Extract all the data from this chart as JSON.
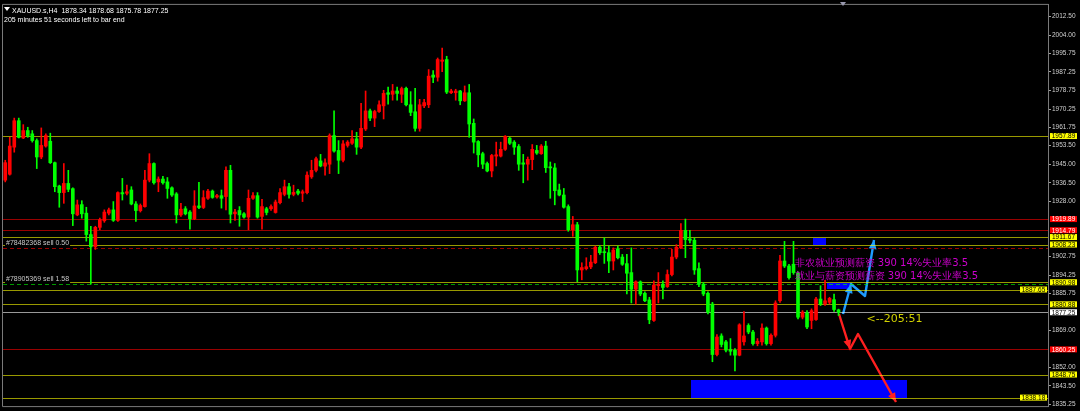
{
  "chart_data": {
    "type": "candlestick",
    "title": "XAUUSD.s,H4  1878.34 1878.68 1875.78 1877.25",
    "subtitle": "205 minutes 51 seconds left to bar end",
    "categories": [
      null,
      null,
      null,
      null,
      null,
      null,
      null,
      null,
      null,
      null,
      null,
      null,
      null,
      null,
      null,
      null,
      null,
      null,
      null,
      null,
      null,
      null,
      null,
      null,
      null,
      null,
      null,
      null,
      null,
      null,
      null,
      null,
      null,
      null,
      null,
      null,
      null,
      null,
      null,
      null,
      null,
      null,
      null,
      null,
      null,
      null,
      null,
      null,
      null,
      null,
      null,
      null,
      null,
      null,
      null,
      null,
      null,
      null,
      null,
      null,
      null,
      null,
      null,
      null,
      null,
      null,
      null,
      null,
      null,
      null,
      null,
      null,
      null,
      null,
      null,
      null,
      null,
      null,
      null,
      null,
      null,
      null,
      null,
      null,
      null,
      null,
      null,
      null,
      null,
      null,
      null,
      null,
      null,
      null,
      null,
      null,
      null,
      null,
      null,
      null,
      null,
      null,
      null,
      null,
      null,
      null,
      null,
      null,
      null,
      null,
      null,
      null,
      null,
      null,
      null,
      null,
      null,
      null,
      null,
      null,
      null,
      null,
      null,
      null,
      null,
      null,
      null,
      null,
      null,
      null,
      null,
      null,
      null,
      null,
      null,
      null,
      null,
      null,
      null,
      null,
      null,
      null,
      null,
      null,
      null,
      null,
      null,
      null,
      null,
      null,
      null,
      null,
      null,
      null,
      null,
      null,
      null,
      null,
      null,
      null,
      null,
      null,
      null,
      null,
      null,
      null,
      null,
      null,
      null,
      null,
      null,
      null,
      null,
      null,
      null,
      null,
      null,
      null,
      null,
      null,
      null,
      null,
      null,
      null,
      null,
      null,
      null,
      null,
      null,
      null,
      null,
      null,
      null,
      null,
      null,
      null,
      null,
      null,
      null,
      null,
      null,
      null,
      null,
      null,
      null,
      null,
      null,
      null,
      null,
      null,
      null,
      null,
      null,
      null,
      null,
      null,
      null,
      null,
      null,
      null,
      null,
      null,
      null,
      null,
      null,
      null,
      null,
      null,
      null,
      null,
      null,
      null
    ],
    "ohlc": [
      [
        1937.7,
        1946.8,
        1936.9,
        1945.7
      ],
      [
        1940.4,
        1957.3,
        1940.0,
        1953.3
      ],
      [
        1952.8,
        1966.1,
        1950.5,
        1964.9
      ],
      [
        1964.9,
        1966.1,
        1957.0,
        1957.3
      ],
      [
        1957.0,
        1963.1,
        1956.7,
        1960.4
      ],
      [
        1960.4,
        1961.9,
        1957.3,
        1958.1
      ],
      [
        1958.9,
        1960.4,
        1955.1,
        1955.8
      ],
      [
        1955.8,
        1956.6,
        1943.0,
        1948.3
      ],
      [
        1948.3,
        1961.6,
        1947.5,
        1953.6
      ],
      [
        1953.3,
        1958.9,
        1952.8,
        1958.1
      ],
      [
        1955.5,
        1959.2,
        1945.3,
        1945.7
      ],
      [
        1945.7,
        1946.0,
        1932.4,
        1934.7
      ],
      [
        1935.0,
        1935.4,
        1925.3,
        1932.0
      ],
      [
        1932.0,
        1945.3,
        1927.1,
        1936.2
      ],
      [
        1936.2,
        1942.2,
        1932.4,
        1933.5
      ],
      [
        1933.8,
        1934.2,
        1916.9,
        1922.3
      ],
      [
        1921.8,
        1928.6,
        1921.4,
        1926.4
      ],
      [
        1926.5,
        1928.3,
        1920.3,
        1922.3
      ],
      [
        1922.6,
        1925.3,
        1909.8,
        1912.8
      ],
      [
        1912.8,
        1916.6,
        1890.1,
        1907.2
      ],
      [
        1907.2,
        1916.6,
        1906.0,
        1916.1
      ],
      [
        1916.1,
        1920.3,
        1915.0,
        1919.6
      ],
      [
        1919.1,
        1924.1,
        1918.4,
        1923.1
      ],
      [
        1922.6,
        1924.9,
        1921.8,
        1924.1
      ],
      [
        1924.1,
        1927.9,
        1918.8,
        1919.3
      ],
      [
        1919.3,
        1932.4,
        1918.8,
        1932.0
      ],
      [
        1932.0,
        1938.5,
        1928.6,
        1931.4
      ],
      [
        1931.7,
        1935.4,
        1930.9,
        1932.4
      ],
      [
        1933.2,
        1934.7,
        1926.4,
        1926.8
      ],
      [
        1926.8,
        1927.9,
        1918.8,
        1923.8
      ],
      [
        1923.7,
        1926.8,
        1923.1,
        1926.1
      ],
      [
        1925.6,
        1942.2,
        1925.3,
        1937.7
      ],
      [
        1937.7,
        1949.8,
        1936.9,
        1945.3
      ],
      [
        1945.3,
        1945.6,
        1935.9,
        1936.5
      ],
      [
        1936.9,
        1939.2,
        1932.4,
        1938.2
      ],
      [
        1938.2,
        1939.5,
        1935.9,
        1936.5
      ],
      [
        1936.9,
        1938.9,
        1929.4,
        1933.9
      ],
      [
        1934.2,
        1934.7,
        1930.2,
        1930.9
      ],
      [
        1931.4,
        1932.0,
        1918.1,
        1921.8
      ],
      [
        1921.8,
        1927.1,
        1921.1,
        1924.4
      ],
      [
        1924.6,
        1925.6,
        1921.8,
        1922.3
      ],
      [
        1923.1,
        1923.8,
        1915.3,
        1920.0
      ],
      [
        1920.0,
        1932.9,
        1919.6,
        1925.9
      ],
      [
        1925.9,
        1936.7,
        1924.7,
        1925.2
      ],
      [
        1925.2,
        1932.9,
        1924.7,
        1929.7
      ],
      [
        1929.4,
        1933.5,
        1928.9,
        1932.7
      ],
      [
        1932.7,
        1933.2,
        1929.4,
        1929.8
      ],
      [
        1930.0,
        1931.2,
        1929.4,
        1930.6
      ],
      [
        1930.6,
        1933.2,
        1924.9,
        1929.4
      ],
      [
        1930.2,
        1943.8,
        1924.1,
        1942.2
      ],
      [
        1942.2,
        1944.5,
        1918.1,
        1922.1
      ],
      [
        1922.3,
        1924.4,
        1919.3,
        1923.1
      ],
      [
        1923.8,
        1925.6,
        1916.6,
        1921.8
      ],
      [
        1922.3,
        1922.9,
        1920.3,
        1920.8
      ],
      [
        1920.8,
        1933.2,
        1915.0,
        1929.4
      ],
      [
        1929.4,
        1932.0,
        1928.9,
        1930.6
      ],
      [
        1930.6,
        1932.0,
        1920.3,
        1920.8
      ],
      [
        1921.1,
        1928.9,
        1915.3,
        1925.6
      ],
      [
        1924.6,
        1925.3,
        1921.8,
        1922.9
      ],
      [
        1924.6,
        1926.4,
        1923.8,
        1925.6
      ],
      [
        1922.9,
        1928.6,
        1922.6,
        1927.7
      ],
      [
        1927.4,
        1933.9,
        1926.8,
        1932.0
      ],
      [
        1931.2,
        1937.7,
        1930.5,
        1934.7
      ],
      [
        1934.7,
        1936.2,
        1929.4,
        1931.2
      ],
      [
        1931.2,
        1935.4,
        1930.5,
        1932.1
      ],
      [
        1932.7,
        1933.5,
        1930.9,
        1931.7
      ],
      [
        1931.7,
        1933.2,
        1927.9,
        1932.4
      ],
      [
        1932.0,
        1941.5,
        1931.4,
        1940.0
      ],
      [
        1939.2,
        1946.8,
        1938.5,
        1942.2
      ],
      [
        1942.2,
        1948.3,
        1941.5,
        1947.5
      ],
      [
        1946.5,
        1949.5,
        1943.8,
        1944.2
      ],
      [
        1944.1,
        1947.5,
        1940.0,
        1945.6
      ],
      [
        1945.0,
        1958.9,
        1940.7,
        1958.1
      ],
      [
        1958.1,
        1969.4,
        1950.5,
        1951.0
      ],
      [
        1951.3,
        1955.8,
        1940.7,
        1946.8
      ],
      [
        1946.8,
        1955.8,
        1946.0,
        1954.3
      ],
      [
        1953.6,
        1955.8,
        1952.8,
        1955.1
      ],
      [
        1954.6,
        1960.4,
        1954.0,
        1956.6
      ],
      [
        1956.6,
        1959.6,
        1949.5,
        1952.8
      ],
      [
        1952.8,
        1972.8,
        1952.1,
        1961.4
      ],
      [
        1961.1,
        1978.5,
        1960.4,
        1969.4
      ],
      [
        1969.4,
        1970.2,
        1964.9,
        1966.1
      ],
      [
        1966.1,
        1969.7,
        1962.2,
        1969.1
      ],
      [
        1969.1,
        1974.0,
        1968.7,
        1972.2
      ],
      [
        1971.7,
        1978.8,
        1965.7,
        1977.4
      ],
      [
        1977.7,
        1980.3,
        1972.5,
        1977.0
      ],
      [
        1977.0,
        1981.5,
        1974.3,
        1978.5
      ],
      [
        1978.5,
        1980.3,
        1974.3,
        1977.4
      ],
      [
        1977.0,
        1980.3,
        1973.2,
        1979.6
      ],
      [
        1979.7,
        1980.3,
        1971.7,
        1972.2
      ],
      [
        1972.2,
        1978.2,
        1967.2,
        1968.7
      ],
      [
        1969.0,
        1979.7,
        1960.1,
        1961.4
      ],
      [
        1961.4,
        1974.7,
        1960.1,
        1972.2
      ],
      [
        1971.7,
        1974.7,
        1970.9,
        1973.2
      ],
      [
        1972.2,
        1988.3,
        1970.9,
        1985.3
      ],
      [
        1985.8,
        1987.9,
        1982.3,
        1984.8
      ],
      [
        1984.8,
        1993.6,
        1983.0,
        1992.9
      ],
      [
        1992.1,
        1998.1,
        1987.3,
        1992.7
      ],
      [
        1992.9,
        1994.4,
        1977.3,
        1978.0
      ],
      [
        1977.7,
        1979.3,
        1977.3,
        1978.5
      ],
      [
        1977.7,
        1979.3,
        1974.3,
        1978.5
      ],
      [
        1978.5,
        1978.8,
        1972.2,
        1974.0
      ],
      [
        1974.0,
        1980.8,
        1973.7,
        1977.7
      ],
      [
        1977.7,
        1981.5,
        1957.3,
        1963.4
      ],
      [
        1963.7,
        1965.7,
        1950.1,
        1955.1
      ],
      [
        1955.4,
        1955.8,
        1943.8,
        1949.3
      ],
      [
        1949.8,
        1950.5,
        1943.0,
        1945.0
      ],
      [
        1945.3,
        1946.0,
        1941.5,
        1941.9
      ],
      [
        1941.9,
        1949.5,
        1939.2,
        1949.0
      ],
      [
        1948.7,
        1955.1,
        1944.2,
        1949.3
      ],
      [
        1948.7,
        1955.1,
        1948.3,
        1951.8
      ],
      [
        1951.8,
        1958.1,
        1951.3,
        1957.8
      ],
      [
        1956.9,
        1957.3,
        1954.0,
        1954.6
      ],
      [
        1955.1,
        1955.8,
        1949.5,
        1952.8
      ],
      [
        1953.1,
        1954.0,
        1942.2,
        1945.0
      ],
      [
        1945.6,
        1949.5,
        1936.5,
        1945.0
      ],
      [
        1945.0,
        1948.3,
        1937.7,
        1947.2
      ],
      [
        1947.1,
        1954.0,
        1942.5,
        1951.8
      ],
      [
        1951.3,
        1953.6,
        1949.5,
        1950.1
      ],
      [
        1949.8,
        1954.0,
        1949.5,
        1953.3
      ],
      [
        1953.3,
        1955.5,
        1941.2,
        1943.4
      ],
      [
        1943.8,
        1946.0,
        1929.4,
        1943.3
      ],
      [
        1943.3,
        1945.3,
        1926.4,
        1932.9
      ],
      [
        1933.2,
        1935.9,
        1930.5,
        1930.9
      ],
      [
        1930.9,
        1933.9,
        1924.9,
        1925.3
      ],
      [
        1925.6,
        1926.4,
        1914.3,
        1915.0
      ],
      [
        1915.0,
        1921.1,
        1912.0,
        1917.3
      ],
      [
        1917.3,
        1918.4,
        1891.2,
        1896.6
      ],
      [
        1896.6,
        1899.9,
        1892.1,
        1897.7
      ],
      [
        1897.2,
        1902.2,
        1896.6,
        1898.1
      ],
      [
        1898.0,
        1903.3,
        1897.2,
        1900.2
      ],
      [
        1899.9,
        1907.5,
        1899.5,
        1907.0
      ],
      [
        1907.0,
        1907.8,
        1903.7,
        1904.5
      ],
      [
        1904.8,
        1911.3,
        1899.6,
        1904.5
      ],
      [
        1904.5,
        1907.5,
        1895.4,
        1900.7
      ],
      [
        1900.7,
        1906.7,
        1896.6,
        1905.7
      ],
      [
        1906.3,
        1907.5,
        1901.7,
        1902.2
      ],
      [
        1902.5,
        1903.7,
        1898.7,
        1899.2
      ],
      [
        1899.5,
        1903.7,
        1885.6,
        1895.1
      ],
      [
        1895.4,
        1906.7,
        1881.5,
        1887.8
      ],
      [
        1887.8,
        1891.6,
        1881.0,
        1891.2
      ],
      [
        1891.2,
        1891.6,
        1884.8,
        1885.6
      ],
      [
        1885.9,
        1886.6,
        1882.1,
        1882.5
      ],
      [
        1882.9,
        1884.1,
        1872.0,
        1873.8
      ],
      [
        1873.5,
        1891.6,
        1873.0,
        1889.7
      ],
      [
        1889.4,
        1895.4,
        1881.5,
        1890.1
      ],
      [
        1890.1,
        1891.6,
        1883.3,
        1888.6
      ],
      [
        1889.0,
        1896.6,
        1888.6,
        1894.5
      ],
      [
        1894.5,
        1906.0,
        1893.9,
        1902.5
      ],
      [
        1902.5,
        1908.2,
        1901.7,
        1907.0
      ],
      [
        1906.7,
        1917.8,
        1906.3,
        1914.7
      ],
      [
        1914.7,
        1919.9,
        1902.2,
        1910.5
      ],
      [
        1910.8,
        1914.7,
        1909.0,
        1910.2
      ],
      [
        1910.2,
        1911.3,
        1894.6,
        1896.6
      ],
      [
        1897.2,
        1899.9,
        1889.0,
        1890.1
      ],
      [
        1890.1,
        1890.9,
        1884.8,
        1885.6
      ],
      [
        1885.9,
        1886.6,
        1876.5,
        1877.3
      ],
      [
        1881.0,
        1881.8,
        1854.6,
        1857.9
      ],
      [
        1857.9,
        1867.0,
        1857.3,
        1865.9
      ],
      [
        1866.4,
        1867.4,
        1861.4,
        1862.5
      ],
      [
        1863.7,
        1864.4,
        1859.1,
        1859.9
      ],
      [
        1860.3,
        1865.2,
        1857.6,
        1859.4
      ],
      [
        1859.9,
        1860.6,
        1850.4,
        1857.6
      ],
      [
        1857.6,
        1872.0,
        1857.3,
        1871.5
      ],
      [
        1863.7,
        1877.6,
        1862.2,
        1866.4
      ],
      [
        1871.2,
        1872.0,
        1867.4,
        1868.2
      ],
      [
        1868.2,
        1869.0,
        1862.2,
        1862.9
      ],
      [
        1862.9,
        1865.2,
        1861.9,
        1864.0
      ],
      [
        1863.7,
        1872.0,
        1862.2,
        1870.0
      ],
      [
        1870.0,
        1870.5,
        1862.2,
        1862.9
      ],
      [
        1862.9,
        1867.4,
        1862.2,
        1866.7
      ],
      [
        1866.7,
        1882.5,
        1865.9,
        1881.5
      ],
      [
        1882.5,
        1903.3,
        1881.8,
        1900.7
      ],
      [
        1900.7,
        1909.7,
        1897.7,
        1898.4
      ],
      [
        1898.4,
        1899.2,
        1892.4,
        1893.1
      ],
      [
        1899.2,
        1909.7,
        1894.6,
        1895.4
      ],
      [
        1895.1,
        1895.7,
        1874.2,
        1875.0
      ],
      [
        1875.0,
        1878.0,
        1874.2,
        1877.3
      ],
      [
        1877.0,
        1878.0,
        1869.7,
        1870.5
      ],
      [
        1873.5,
        1878.8,
        1869.7,
        1878.0
      ],
      [
        1873.9,
        1884.1,
        1873.5,
        1883.3
      ],
      [
        1883.3,
        1889.4,
        1880.3,
        1881.0
      ],
      [
        1881.0,
        1891.9,
        1880.4,
        1882.5
      ],
      [
        1881.8,
        1884.1,
        1881.0,
        1883.6
      ],
      [
        1883.0,
        1885.6,
        1877.6,
        1878.5
      ],
      [
        1878.34,
        1878.68,
        1875.78,
        1877.25
      ],
      null,
      null,
      null,
      null,
      null,
      null,
      null,
      null,
      null,
      null,
      null,
      null,
      null,
      null,
      null,
      null,
      null,
      null,
      null,
      null,
      null,
      null,
      null,
      null,
      null,
      null,
      null,
      null,
      null,
      null,
      null,
      null,
      null,
      null,
      null,
      null,
      null,
      null,
      null,
      null,
      null,
      null,
      null,
      null,
      null,
      null
    ],
    "colors": [
      "#ff0000",
      "#ff0000",
      "#ff0000",
      "#00ff00",
      "#ff0000",
      "#00ff00",
      "#00ff00",
      "#00ff00",
      "#ff0000",
      "#ff0000",
      "#00ff00",
      "#00ff00",
      "#00ff00",
      "#ff0000",
      "#00ff00",
      "#00ff00",
      "#ff0000",
      "#00ff00",
      "#00ff00",
      "#00ff00",
      "#ff0000",
      "#ff0000",
      "#ff0000",
      "#ff0000",
      "#00ff00",
      "#ff0000",
      "#00ff00",
      "#ff0000",
      "#00ff00",
      "#00ff00",
      "#ff0000",
      "#ff0000",
      "#ff0000",
      "#00ff00",
      "#ff0000",
      "#00ff00",
      "#00ff00",
      "#00ff00",
      "#00ff00",
      "#ff0000",
      "#00ff00",
      "#00ff00",
      "#ff0000",
      "#00ff00",
      "#ff0000",
      "#ff0000",
      "#00ff00",
      "#ff0000",
      "#00ff00",
      "#ff0000",
      "#00ff00",
      "#ff0000",
      "#00ff00",
      "#00ff00",
      "#ff0000",
      "#ff0000",
      "#00ff00",
      "#ff0000",
      "#00ff00",
      "#ff0000",
      "#ff0000",
      "#ff0000",
      "#ff0000",
      "#00ff00",
      "#ff0000",
      "#00ff00",
      "#ff0000",
      "#ff0000",
      "#ff0000",
      "#ff0000",
      "#00ff00",
      "#ff0000",
      "#ff0000",
      "#00ff00",
      "#00ff00",
      "#ff0000",
      "#ff0000",
      "#ff0000",
      "#00ff00",
      "#ff0000",
      "#ff0000",
      "#00ff00",
      "#ff0000",
      "#ff0000",
      "#ff0000",
      "#00ff00",
      "#ff0000",
      "#00ff00",
      "#ff0000",
      "#00ff00",
      "#00ff00",
      "#00ff00",
      "#ff0000",
      "#ff0000",
      "#ff0000",
      "#00ff00",
      "#ff0000",
      "#ff0000",
      "#00ff00",
      "#ff0000",
      "#ff0000",
      "#00ff00",
      "#ff0000",
      "#00ff00",
      "#00ff00",
      "#00ff00",
      "#00ff00",
      "#00ff00",
      "#ff0000",
      "#ff0000",
      "#ff0000",
      "#ff0000",
      "#00ff00",
      "#00ff00",
      "#00ff00",
      "#00ff00",
      "#ff0000",
      "#ff0000",
      "#00ff00",
      "#ff0000",
      "#00ff00",
      "#00ff00",
      "#00ff00",
      "#00ff00",
      "#00ff00",
      "#00ff00",
      "#ff0000",
      "#00ff00",
      "#ff0000",
      "#ff0000",
      "#ff0000",
      "#ff0000",
      "#00ff00",
      "#00ff00",
      "#00ff00",
      "#ff0000",
      "#00ff00",
      "#00ff00",
      "#00ff00",
      "#00ff00",
      "#ff0000",
      "#00ff00",
      "#00ff00",
      "#00ff00",
      "#ff0000",
      "#ff0000",
      "#00ff00",
      "#ff0000",
      "#ff0000",
      "#ff0000",
      "#ff0000",
      "#00ff00",
      "#00ff00",
      "#00ff00",
      "#00ff00",
      "#00ff00",
      "#00ff00",
      "#00ff00",
      "#ff0000",
      "#00ff00",
      "#00ff00",
      "#00ff00",
      "#00ff00",
      "#ff0000",
      "#ff0000",
      "#00ff00",
      "#00ff00",
      "#ff0000",
      "#ff0000",
      "#00ff00",
      "#ff0000",
      "#ff0000",
      "#ff0000",
      "#00ff00",
      "#00ff00",
      "#00ff00",
      "#00ff00",
      "#ff0000",
      "#00ff00",
      "#ff0000",
      "#ff0000",
      "#00ff00",
      "#ff0000",
      "#ff0000",
      "#00ff00",
      "#00ff00",
      null,
      null,
      null,
      null,
      null,
      null,
      null,
      null,
      null,
      null,
      null,
      null,
      null,
      null,
      null,
      null,
      null,
      null,
      null,
      null,
      null,
      null,
      null,
      null,
      null,
      null,
      null,
      null,
      null,
      null,
      null,
      null,
      null,
      null,
      null,
      null,
      null,
      null,
      null,
      null,
      null,
      null,
      null,
      null,
      null,
      null
    ],
    "ylim": [
      1834.3,
      2017.9
    ],
    "yticks": [
      {
        "value": 2012.5,
        "label": "2012.50"
      },
      {
        "value": 2004,
        "label": "2004.00"
      },
      {
        "value": 1995.75,
        "label": "1995.75"
      },
      {
        "value": 1987.25,
        "label": "1987.25"
      },
      {
        "value": 1978.75,
        "label": "1978.75"
      },
      {
        "value": 1970.25,
        "label": "1970.25"
      },
      {
        "value": 1961.75,
        "label": "1961.75"
      },
      {
        "value": 1953.5,
        "label": "1953.50"
      },
      {
        "value": 1945,
        "label": "1945.00"
      },
      {
        "value": 1936.5,
        "label": "1936.50"
      },
      {
        "value": 1928,
        "label": "1928.00"
      },
      {
        "value": 1902.75,
        "label": "1902.75"
      },
      {
        "value": 1894.25,
        "label": "1894.25"
      },
      {
        "value": 1885.75,
        "label": "1885.75"
      },
      {
        "value": 1869,
        "label": "1869.00"
      },
      {
        "value": 1852,
        "label": "1852.00"
      },
      {
        "value": 1843.5,
        "label": "1843.50"
      },
      {
        "value": 1835.25,
        "label": "1835.25"
      }
    ],
    "ref_lines": [
      {
        "axis": "y",
        "value": 1957.89,
        "label": "1957.89",
        "color": "#ffff00"
      },
      {
        "axis": "y",
        "value": 1919.89,
        "label": "1919.89",
        "color": "#ff0000"
      },
      {
        "axis": "y",
        "value": 1914.79,
        "label": "1914.79",
        "color": "#ff0000"
      },
      {
        "axis": "y",
        "value": 1911.67,
        "label": "1911.67",
        "color": "#ffff00"
      },
      {
        "axis": "y",
        "value": 1908.23,
        "label": "1908.23",
        "color": "#ffff00"
      },
      {
        "axis": "y",
        "value": 1906.7,
        "label": "#78482368 sell 0.50",
        "color": "#ff0000",
        "line_style": "dashed"
      },
      {
        "axis": "y",
        "value": 1890.98,
        "label": "1890.98",
        "color": "#ffff00"
      },
      {
        "axis": "y",
        "value": 1890.3,
        "label": "#78905369 sell 1.58",
        "color": "#00ff00",
        "line_style": "dashed"
      },
      {
        "axis": "y",
        "value": 1887.65,
        "label": "1887.65",
        "color": "#ffff00"
      },
      {
        "axis": "y",
        "value": 1880.88,
        "label": "1880.88",
        "color": "#ffff00"
      },
      {
        "axis": "y",
        "value": 1877.25,
        "label": "1877.25",
        "color": "#ffffff"
      },
      {
        "axis": "y",
        "value": 1860.25,
        "label": "1860.25",
        "color": "#ff0000"
      },
      {
        "axis": "y",
        "value": 1848.75,
        "label": "1848.75",
        "color": "#ffff00"
      },
      {
        "axis": "y",
        "value": 1838.18,
        "label": "1838.18",
        "color": "#ffff00"
      }
    ],
    "annotations": [
      "<--205:51",
      "非农就业预测薪资 390 14%失业率3.5",
      "就业与薪资预测薪资 390 14%失业率3.5"
    ],
    "grid": false,
    "tick_labels": "y"
  }
}
